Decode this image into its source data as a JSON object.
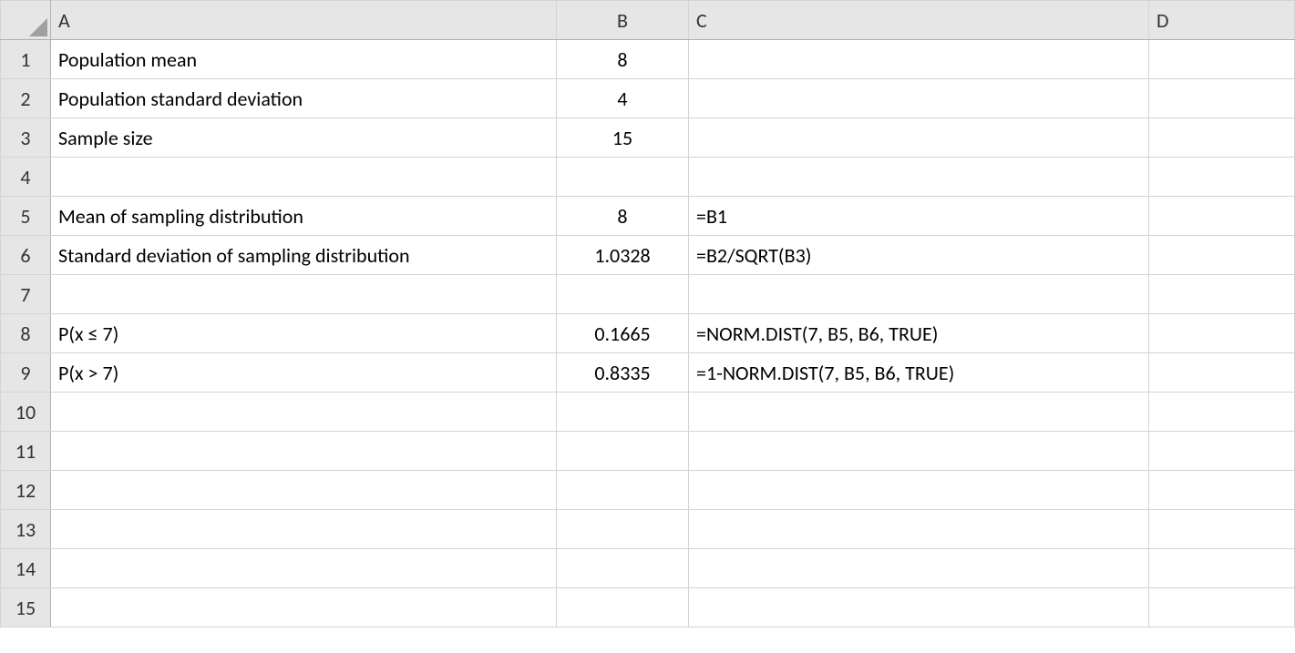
{
  "columns": [
    "A",
    "B",
    "C",
    "D"
  ],
  "rowNumbers": [
    "1",
    "2",
    "3",
    "4",
    "5",
    "6",
    "7",
    "8",
    "9",
    "10",
    "11",
    "12",
    "13",
    "14",
    "15"
  ],
  "cells": {
    "r1": {
      "a": "Population mean",
      "b": "8",
      "c": ""
    },
    "r2": {
      "a": "Population standard deviation",
      "b": "4",
      "c": ""
    },
    "r3": {
      "a": "Sample size",
      "b": "15",
      "c": ""
    },
    "r4": {
      "a": "",
      "b": "",
      "c": ""
    },
    "r5": {
      "a": "Mean of sampling distribution",
      "b": "8",
      "c": "=B1"
    },
    "r6": {
      "a": "Standard deviation of sampling distribution",
      "b": "1.0328",
      "c": "=B2/SQRT(B3)"
    },
    "r7": {
      "a": "",
      "b": "",
      "c": ""
    },
    "r8": {
      "a": "P(x ≤ 7)",
      "b": "0.1665",
      "c": "=NORM.DIST(7, B5, B6, TRUE)"
    },
    "r9": {
      "a": "P(x > 7)",
      "b": "0.8335",
      "c": "=1-NORM.DIST(7, B5, B6, TRUE)"
    },
    "r10": {
      "a": "",
      "b": "",
      "c": ""
    },
    "r11": {
      "a": "",
      "b": "",
      "c": ""
    },
    "r12": {
      "a": "",
      "b": "",
      "c": ""
    },
    "r13": {
      "a": "",
      "b": "",
      "c": ""
    },
    "r14": {
      "a": "",
      "b": "",
      "c": ""
    },
    "r15": {
      "a": "",
      "b": "",
      "c": ""
    }
  }
}
